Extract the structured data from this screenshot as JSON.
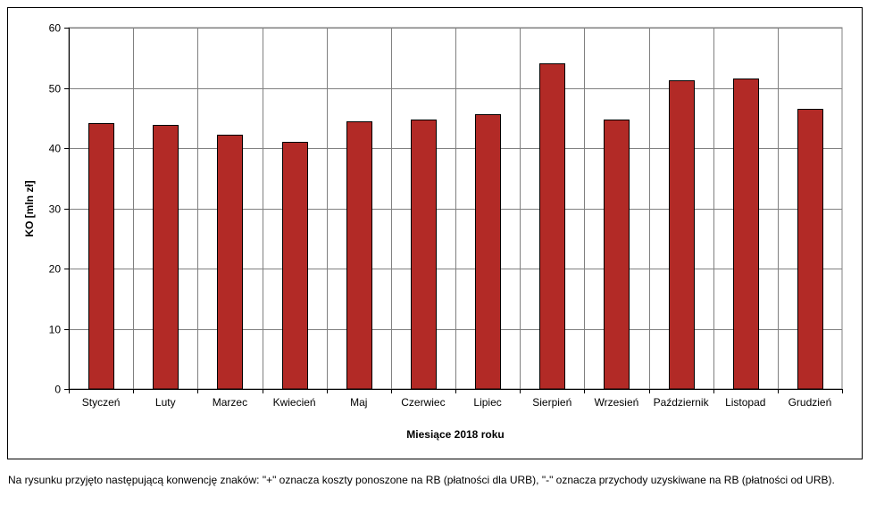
{
  "chart_data": {
    "type": "bar",
    "categories": [
      "Styczeń",
      "Luty",
      "Marzec",
      "Kwiecień",
      "Maj",
      "Czerwiec",
      "Lipiec",
      "Sierpień",
      "Wrzesień",
      "Październik",
      "Listopad",
      "Grudzień"
    ],
    "values": [
      44.1,
      43.9,
      42.2,
      41.0,
      44.5,
      44.8,
      45.6,
      54.1,
      44.7,
      51.2,
      51.5,
      46.5
    ],
    "xlabel": "Miesiące 2018  roku",
    "ylabel": "KO [mln zł]",
    "ylim": [
      0,
      60
    ],
    "yticks": [
      0,
      10,
      20,
      30,
      40,
      50,
      60
    ],
    "grid": true,
    "bar_color": "#b22a26"
  },
  "footnote": "Na rysunku przyjęto następującą konwencję znaków: \"+\" oznacza koszty ponoszone na RB (płatności dla URB), \"-\" oznacza przychody uzyskiwane na RB (płatności od URB)."
}
